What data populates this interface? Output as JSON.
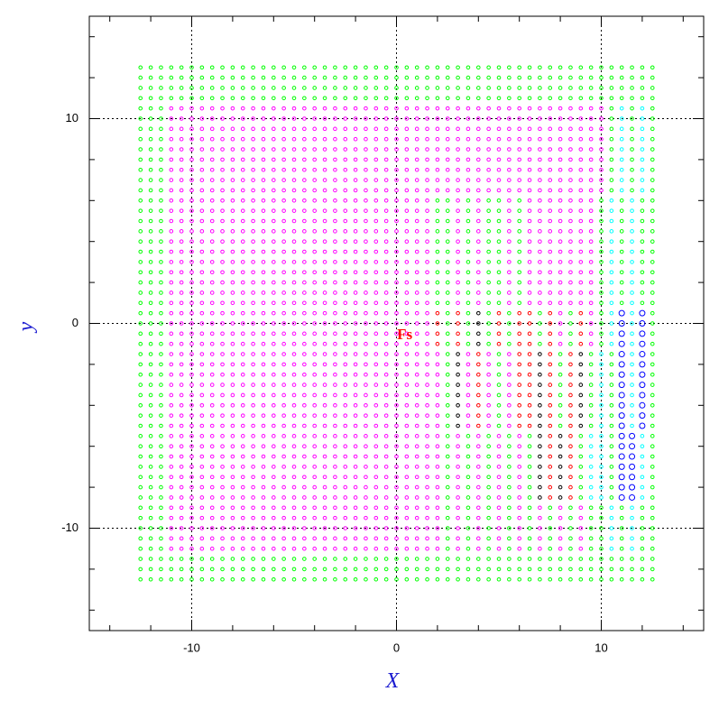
{
  "chart_data": {
    "type": "scatter",
    "x_label": "X",
    "y_label": "y",
    "annotation": "Fs",
    "annotation_at": [
      0.4,
      -0.6
    ],
    "annotation_color": "#ff0000",
    "xlim": [
      -15,
      15
    ],
    "ylim": [
      -15,
      15
    ],
    "xticks": [
      -10,
      0,
      10
    ],
    "yticks": [
      -10,
      0,
      10
    ],
    "xminorticks": [
      -14,
      -12,
      -10,
      -8,
      -6,
      -4,
      -2,
      0,
      2,
      4,
      6,
      8,
      10,
      12,
      14
    ],
    "yminorticks": [
      -14,
      -12,
      -10,
      -8,
      -6,
      -4,
      -2,
      0,
      2,
      4,
      6,
      8,
      10,
      12,
      14
    ],
    "grid": true,
    "palette": {
      "g": "#00ff00",
      "m": "#ff00ff",
      "c": "#00ffff",
      "b": "#0000ff",
      "r": "#ff0000",
      "k": "#000000"
    },
    "x": [
      -12.5,
      -12,
      -11.5,
      -11,
      -10.5,
      -10,
      -9.5,
      -9,
      -8.5,
      -8,
      -7.5,
      -7,
      -6.5,
      -6,
      -5.5,
      -5,
      -4.5,
      -4,
      -3.5,
      -3,
      -2.5,
      -2,
      -1.5,
      -1,
      -0.5,
      0,
      0.5,
      1,
      1.5,
      2,
      2.5,
      3,
      3.5,
      4,
      4.5,
      5,
      5.5,
      6,
      6.5,
      7,
      7.5,
      8,
      8.5,
      9,
      9.5,
      10,
      10.5,
      11,
      11.5,
      12,
      12.5
    ],
    "y": [
      12.5,
      12,
      11.5,
      11,
      10.5,
      10,
      9.5,
      9,
      8.5,
      8,
      7.5,
      7,
      6.5,
      6,
      5.5,
      5,
      4.5,
      4,
      3.5,
      3,
      2.5,
      2,
      1.5,
      1,
      0.5,
      0,
      -0.5,
      -1,
      -1.5,
      -2,
      -2.5,
      -3,
      -3.5,
      -4,
      -4.5,
      -5,
      -5.5,
      -6,
      -6.5,
      -7,
      -7.5,
      -8,
      -8.5,
      -9,
      -9.5,
      -10,
      -10.5,
      -11,
      -11.5,
      -12,
      -12.5
    ],
    "rows": [
      "ggggggggggggggggggggggggggggggggggggggggggggggggggg",
      "ggggggggggggggggggggggggggggggggggggggggggggggggggg",
      "ggggggggggggggggggggggggggggggggggggggggggggggggggg",
      "ggggggggggggggggggggggggggggggggggggggggggggggggggg",
      "gggmmmmmmmmmmmmmmmmmmmmmmmmmmmmmmmmmmmmmmmmmmmgcgcgg",
      "gggmmmmmmmmmmmmmmmmmmmmmmmmmmmmmmmmmmmmmmmmmmmgcgcgg",
      "gggmmmmmmmmmmmmmmmmmmmmmmmmmmmmmmmmmmmmmmmmmmmgcgcgg",
      "gggmmmmmmmmmmmmmmmmmmmmmmmmmmmmmmmmmmmmmmmmmmmgcgcgg",
      "gggmmmmmmmmmmmmmmmmmmmmmmmmmmmmmmmmmmmmmmmmmmmgcgcgg",
      "gggmmmmmmmmmmmmmmmmmmmmmmmmmmmmmmmmmmmmmmmmmmmgcgcgg",
      "gggmmmmmmmmmmmmmmmmmmmmmmmmmmmmmmmmmmmmmmmmmmmgcgcgg",
      "gggmmmmmmmmmmmmmmmmmmmmmmmmmmmmmmmmmmmmmmmmmmmgcgcgg",
      "gggmmmmmmmmmmmmmmmmmmmmmmmmmmmmmmmmmmmmmmmmmmmgcgcgg",
      "gggmmmmmmmmmmmmmmmmmmmmmmmmmmggmgmggmgmmmmmmmgcgcgg",
      "gggmmmmmmmmmmmmmmmmmmmmmmmmmmggmgmggmgmmmmmmmgcgcgg",
      "gggmmmmmmmmmmmmmmmmmmmmmmmmmmggmgmggmgmmmmmmmgcgcgg",
      "gggmmmmmmmmmmmmmmmmmmmmmmmmmmggmgmggmgmmmmmmmgcgcgg",
      "gggmmmmmmmmmmmmmmmmmmmmmmmmmmggmgmggmgmmmmmmmgcgcgg",
      "gggmmmmmmmmmmmmmmmmmmmmmmmmmmggmgmggmgmmmmmmmgcgcgg",
      "gggmmmmmmmmmmmmmmmmmmmmmmmmmmggmgmggmgmmmmmmmgcgcgg",
      "gggmmmmmmmmmmmmmmmmmmmmmmmmmmggmgmggmgmmmmmmmgcgcgg",
      "gggmmmmmmmmmmmmmmmmmmmmmmmmmmggmgmggmgmmmmmmmgcgcgg",
      "gggmmmmmmmmmmmmmmmmmmmmmmmmmmggmgmggmgmmmmmmmgcgcgg",
      "gggmmmmmmmmmmmmmmmmmmmmmmmmmmggmgmggmgmmmmmmmgcgcgg",
      "gggmmmmmmmmmmmmmmmmmmmmmmmmmmrgrgkgrgrrgrmgrmgcbcbg",
      "gggmmmmmmmmmmmmmmmmmmmmmmmmmmrgrgkgrgrrgrmgrmgcbcbg",
      "gggmmmmmmmmmmmmmmmmmmmmmmmmmmrgrgkgrgrrgrmgrmgcbcbg",
      "gggmmmmmmmmmmmmmmmmmmmmmmmmmmrgrgkgrgrrgrmgrmgcbcbg",
      "gggmmmmmmmmmmmmmmmmmmmmmmmmmmmgkmrmgmrrkrgrkgcgbcbg",
      "gggmmmmmmmmmmmmmmmmmmmmmmmmmmmgkmrmgmrrkrgrkgcgbcbg",
      "gggmmmmmmmmmmmmmmmmmmmmmmmmmmmgkmrmgmrrkrgrkgcgbcbg",
      "gggmmmmmmmmmmmmmmmmmmmmmmmmmmmgkmrmgmrrkrgrkgcgbcbg",
      "gggmmmmmmmmmmmmmmmmmmmmmmmmmmmgkmrmgmrrkrgrkgcgbcbg",
      "gggmmmmmmmmmmmmmmmmmmmmmmmmmmmgkmrmgmrrkrgrkgcgbcbg",
      "gggmmmmmmmmmmmmmmmmmmmmmmmmmmmgkmrmgmrrkrgrkgcgbcbg",
      "gggmmmmmmmmmmmmmmmmmmmmmmmmmmmgkmrmgmrrkrgrkgcgbcbg",
      "gggmmmmmmmmmmmmmmmmmmmmmmmmmmmgmgmgmgmgkrkrgccgbbcg",
      "gggmmmmmmmmmmmmmmmmmmmmmmmmmmmgmgmgmgmgkrkrgccgbbcg",
      "gggmmmmmmmmmmmmmmmmmmmmmmmmmmmgmgmgmgmgkrkrgccgbbcg",
      "gggmmmmmmmmmmmmmmmmmmmmmmmmmmmgmgmgmgmgkrkrgccgbbcg",
      "gggmmmmmmmmmmmmmmmmmmmmmmmmmmmgmgmgmgmgkrkrgccgbbcg",
      "gggmmmmmmmmmmmmmmmmmmmmmmmmmmmgmgmgmgmgkrkrgccgbbcg",
      "gggmmmmmmmmmmmmmmmmmmmmmmmmmmmgmgmgmgmgkrkrgccgbbcg",
      "gggmmmmmmmmmmmmmmmmmmmmmmmmmmmgmgmgmgmgmgmgmggcgcgg",
      "gggmmmmmmmmmmmmmmmmmmmmmmmmmmmgmgmgmgmgmgmgmggcgcgg",
      "gggmmmmmmmmmmmmmmmmmmmmmmmmmmmgmgmgmgmgmgmgmggcgcgg",
      "gggmmmmmmmmmmmmmmmmmmmmmmmmmmmgmgmgmgmgmgmgmggcgcgg",
      "gggmmmmmmmmmmmmmmmmmmmmmmmmmmmgmgmgmgmgmgmgmggcgcgg",
      "ggggggggggggggggggggggggggggggggggggggggggggggggggg",
      "ggggggggggggggggggggggggggggggggggggggggggggggggggg",
      "ggggggggggggggggggggggggggggggggggggggggggggggggggg"
    ]
  }
}
